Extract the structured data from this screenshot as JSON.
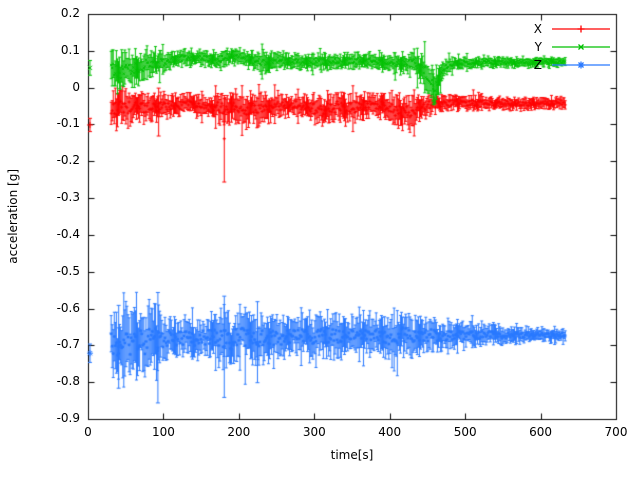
{
  "chart_data": {
    "type": "line",
    "style": "errorbars",
    "title": "",
    "xlabel": "time[s]",
    "ylabel": "acceleration [g]",
    "xlim": [
      0,
      700
    ],
    "ylim": [
      -0.9,
      0.2
    ],
    "xticks": [
      0,
      100,
      200,
      300,
      400,
      500,
      600,
      700
    ],
    "yticks": [
      -0.9,
      -0.8,
      -0.7,
      -0.6,
      -0.5,
      -0.4,
      -0.3,
      -0.2,
      -0.1,
      0,
      0.1,
      0.2
    ],
    "grid": false,
    "background": "#ffffff",
    "axis_color": "#000000",
    "legend_position": "top-right-inside",
    "series": [
      {
        "name": "X",
        "color": "#ff0000",
        "marker": "plus",
        "trange": [
          30,
          632
        ],
        "start_point": [
          2,
          -0.1,
          0.018
        ],
        "envelope": [
          [
            30,
            -0.06,
            0.05
          ],
          [
            45,
            -0.05,
            0.045
          ],
          [
            60,
            -0.055,
            0.04
          ],
          [
            80,
            -0.05,
            0.035
          ],
          [
            100,
            -0.048,
            0.03
          ],
          [
            130,
            -0.045,
            0.026
          ],
          [
            160,
            -0.05,
            0.03
          ],
          [
            178,
            -0.055,
            0.042
          ],
          [
            192,
            -0.05,
            0.034
          ],
          [
            210,
            -0.055,
            0.045
          ],
          [
            230,
            -0.06,
            0.04
          ],
          [
            250,
            -0.05,
            0.032
          ],
          [
            270,
            -0.045,
            0.026
          ],
          [
            290,
            -0.05,
            0.03
          ],
          [
            310,
            -0.06,
            0.045
          ],
          [
            330,
            -0.05,
            0.035
          ],
          [
            345,
            -0.055,
            0.04
          ],
          [
            360,
            -0.05,
            0.032
          ],
          [
            375,
            -0.045,
            0.03
          ],
          [
            395,
            -0.05,
            0.036
          ],
          [
            410,
            -0.065,
            0.05
          ],
          [
            428,
            -0.06,
            0.045
          ],
          [
            442,
            -0.05,
            0.03
          ],
          [
            458,
            -0.045,
            0.024
          ],
          [
            475,
            -0.04,
            0.02
          ],
          [
            510,
            -0.04,
            0.018
          ],
          [
            560,
            -0.042,
            0.016
          ],
          [
            632,
            -0.04,
            0.015
          ]
        ],
        "spikes": [
          [
            180,
            -0.255,
            -0.02
          ],
          [
            93,
            -0.13,
            0.0
          ]
        ]
      },
      {
        "name": "Y",
        "color": "#00c000",
        "marker": "cross",
        "trange": [
          30,
          632
        ],
        "start_point": [
          2,
          0.055,
          0.02
        ],
        "envelope": [
          [
            30,
            0.05,
            0.05
          ],
          [
            42,
            0.04,
            0.048
          ],
          [
            55,
            0.05,
            0.045
          ],
          [
            68,
            0.06,
            0.04
          ],
          [
            82,
            0.065,
            0.032
          ],
          [
            100,
            0.07,
            0.025
          ],
          [
            120,
            0.08,
            0.02
          ],
          [
            140,
            0.085,
            0.02
          ],
          [
            158,
            0.08,
            0.02
          ],
          [
            172,
            0.075,
            0.024
          ],
          [
            188,
            0.088,
            0.02
          ],
          [
            204,
            0.082,
            0.02
          ],
          [
            218,
            0.075,
            0.022
          ],
          [
            232,
            0.07,
            0.03
          ],
          [
            248,
            0.075,
            0.024
          ],
          [
            265,
            0.075,
            0.02
          ],
          [
            285,
            0.07,
            0.018
          ],
          [
            305,
            0.072,
            0.02
          ],
          [
            325,
            0.07,
            0.022
          ],
          [
            345,
            0.073,
            0.02
          ],
          [
            365,
            0.075,
            0.02
          ],
          [
            385,
            0.07,
            0.02
          ],
          [
            405,
            0.068,
            0.022
          ],
          [
            420,
            0.065,
            0.026
          ],
          [
            433,
            0.07,
            0.03
          ],
          [
            444,
            0.05,
            0.04
          ],
          [
            452,
            0.02,
            0.045
          ],
          [
            460,
            0.0,
            0.04
          ],
          [
            467,
            0.03,
            0.035
          ],
          [
            474,
            0.06,
            0.02
          ],
          [
            485,
            0.068,
            0.015
          ],
          [
            530,
            0.07,
            0.013
          ],
          [
            580,
            0.07,
            0.012
          ],
          [
            632,
            0.07,
            0.012
          ]
        ],
        "spikes": [
          [
            457,
            -0.035,
            0.05
          ]
        ]
      },
      {
        "name": "Z",
        "color": "#2979ff",
        "marker": "asterisk",
        "trange": [
          30,
          632
        ],
        "start_point": [
          2,
          -0.72,
          0.025
        ],
        "envelope": [
          [
            30,
            -0.69,
            0.07
          ],
          [
            40,
            -0.7,
            0.09
          ],
          [
            52,
            -0.69,
            0.09
          ],
          [
            64,
            -0.685,
            0.082
          ],
          [
            76,
            -0.69,
            0.085
          ],
          [
            88,
            -0.69,
            0.095
          ],
          [
            100,
            -0.68,
            0.06
          ],
          [
            115,
            -0.68,
            0.05
          ],
          [
            130,
            -0.68,
            0.046
          ],
          [
            145,
            -0.68,
            0.05
          ],
          [
            160,
            -0.675,
            0.05
          ],
          [
            175,
            -0.68,
            0.068
          ],
          [
            188,
            -0.685,
            0.075
          ],
          [
            202,
            -0.675,
            0.06
          ],
          [
            216,
            -0.68,
            0.065
          ],
          [
            230,
            -0.675,
            0.06
          ],
          [
            245,
            -0.68,
            0.055
          ],
          [
            260,
            -0.675,
            0.05
          ],
          [
            278,
            -0.67,
            0.046
          ],
          [
            295,
            -0.675,
            0.05
          ],
          [
            312,
            -0.67,
            0.055
          ],
          [
            328,
            -0.675,
            0.058
          ],
          [
            344,
            -0.67,
            0.046
          ],
          [
            360,
            -0.675,
            0.05
          ],
          [
            376,
            -0.67,
            0.046
          ],
          [
            392,
            -0.675,
            0.05
          ],
          [
            408,
            -0.675,
            0.052
          ],
          [
            424,
            -0.67,
            0.055
          ],
          [
            440,
            -0.675,
            0.046
          ],
          [
            456,
            -0.67,
            0.04
          ],
          [
            472,
            -0.675,
            0.035
          ],
          [
            492,
            -0.67,
            0.03
          ],
          [
            512,
            -0.672,
            0.028
          ],
          [
            532,
            -0.67,
            0.025
          ],
          [
            552,
            -0.672,
            0.022
          ],
          [
            572,
            -0.67,
            0.02
          ],
          [
            592,
            -0.67,
            0.018
          ],
          [
            612,
            -0.672,
            0.016
          ],
          [
            632,
            -0.67,
            0.015
          ]
        ],
        "spikes": [
          [
            40,
            -0.815,
            -0.59
          ],
          [
            92,
            -0.855,
            -0.555
          ],
          [
            180,
            -0.84,
            -0.565
          ],
          [
            224,
            -0.8,
            -0.58
          ]
        ]
      }
    ]
  }
}
